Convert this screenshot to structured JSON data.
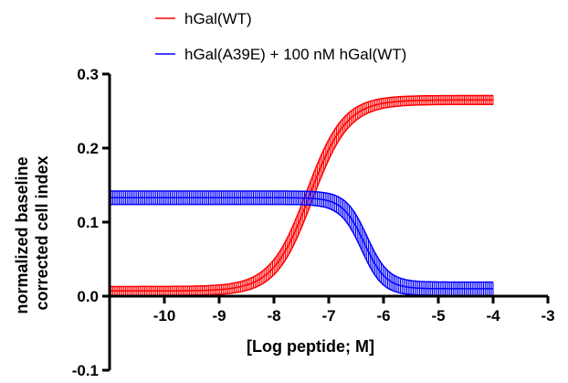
{
  "chart_data": {
    "type": "line",
    "xlabel": "[Log peptide; M]",
    "ylabel_lines": [
      "normalized baseline",
      "corrected cell index"
    ],
    "xlim": [
      -11,
      -3
    ],
    "ylim": [
      -0.1,
      0.3
    ],
    "x_ticks": [
      -10,
      -9,
      -8,
      -7,
      -6,
      -5,
      -4,
      -3
    ],
    "x_tick_labels": [
      "-10",
      "-9",
      "-8",
      "-7",
      "-6",
      "-5",
      "-4",
      "-3"
    ],
    "y_ticks": [
      -0.1,
      0.0,
      0.1,
      0.2,
      0.3
    ],
    "y_tick_labels": [
      "-0.1",
      "0.0",
      "0.1",
      "0.2",
      "0.3"
    ],
    "legend_position": "top",
    "grid": false,
    "series": [
      {
        "name": "hGal(WT)",
        "color": "#ff0000",
        "curve": "sigmoid",
        "bottom": 0.007,
        "top": 0.265,
        "log_ec50": -7.35,
        "hill": 1.3,
        "x_range": [
          -11,
          -4
        ],
        "error_band": 0.006
      },
      {
        "name": "hGal(A39E) + 100 nM hGal(WT)",
        "color": "#0000ff",
        "curve": "sigmoid",
        "bottom": 0.01,
        "top": 0.133,
        "log_ec50": -6.35,
        "hill": -2.2,
        "x_range": [
          -11,
          -4
        ],
        "error_band": 0.009
      }
    ]
  }
}
